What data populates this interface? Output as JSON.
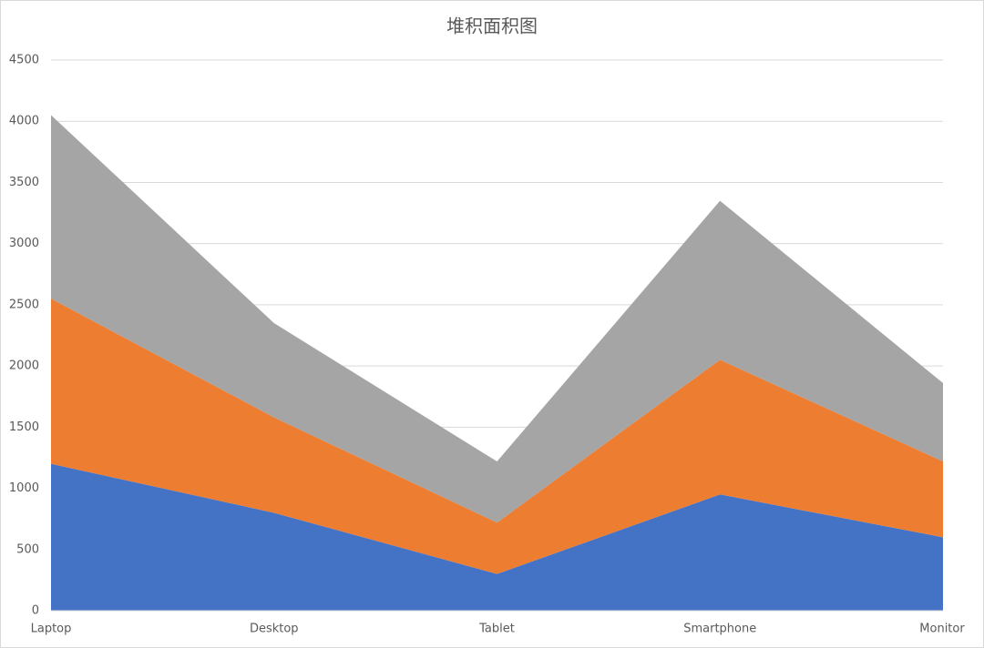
{
  "chart_data": {
    "type": "stacked-area",
    "title": "堆积面积图",
    "categories": [
      "Laptop",
      "Desktop",
      "Tablet",
      "Smartphone",
      "Monitor"
    ],
    "series": [
      {
        "color": "#4472c4",
        "values": [
          1200,
          800,
          300,
          950,
          600
        ]
      },
      {
        "color": "#ed7d31",
        "values": [
          1350,
          780,
          420,
          1100,
          620
        ]
      },
      {
        "color": "#a5a5a5",
        "values": [
          1500,
          770,
          500,
          1300,
          640
        ]
      }
    ],
    "ylim": [
      0,
      4500
    ],
    "yticks": [
      0,
      500,
      1000,
      1500,
      2000,
      2500,
      3000,
      3500,
      4000,
      4500
    ],
    "grid": true
  }
}
